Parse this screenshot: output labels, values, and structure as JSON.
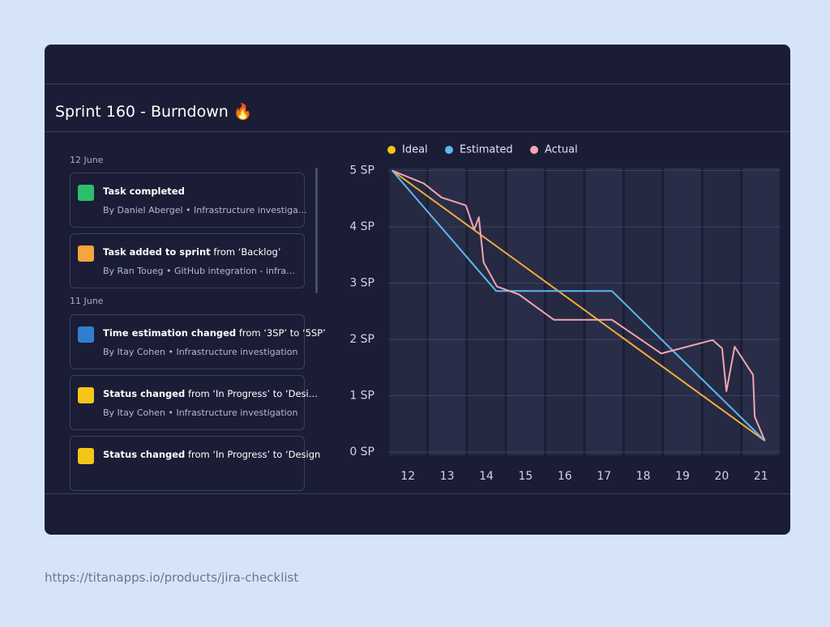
{
  "header": {
    "title": "Sprint 160 - Burndown 🔥"
  },
  "feed": {
    "groups": [
      {
        "date": "12 June",
        "items": [
          {
            "action": "Task completed",
            "detail": "",
            "meta": "By Daniel Abergel • Infrastructure investiga…"
          },
          {
            "action": "Task added to sprint",
            "detail": "from ‘Backlog’",
            "meta": "By Ran Toueg • GitHub integration - infra…"
          }
        ]
      },
      {
        "date": "11 June",
        "items": [
          {
            "action": "Time estimation changed",
            "detail": "from ‘3SP’ to ‘5SP’",
            "meta": "By Itay Cohen • Infrastructure investigation"
          },
          {
            "action": "Status changed",
            "detail": "from ‘In Progress’ to ‘Desi…",
            "meta": "By Itay Cohen • Infrastructure investigation"
          },
          {
            "action": "Status changed",
            "detail": "from ‘In Progress’ to ‘Design",
            "meta": ""
          }
        ]
      }
    ]
  },
  "chart_data": {
    "type": "line",
    "xlim": [
      11.5,
      21.5
    ],
    "xticks": [
      12,
      13,
      14,
      15,
      16,
      17,
      18,
      19,
      20,
      21
    ],
    "ylim": [
      0,
      5.05
    ],
    "yticks": [
      {
        "value": 0,
        "label": "0 SP"
      },
      {
        "value": 1,
        "label": "1 SP"
      },
      {
        "value": 2,
        "label": "2 SP"
      },
      {
        "value": 3,
        "label": "3 SP"
      },
      {
        "value": 4,
        "label": "4 SP"
      },
      {
        "value": 5,
        "label": "5 SP"
      }
    ],
    "grid": true,
    "series": [
      {
        "name": "Ideal",
        "color": "#f0ad3a",
        "x": [
          11.6,
          21.1
        ],
        "values": [
          5.0,
          0.2
        ]
      },
      {
        "name": "Estimated",
        "color": "#5bb8f0",
        "x": [
          11.6,
          14.25,
          17.2,
          21.1
        ],
        "values": [
          5.0,
          2.86,
          2.86,
          0.2
        ]
      },
      {
        "name": "Actual",
        "color": "#f0a6b0",
        "x": [
          11.6,
          12.41,
          12.86,
          13.48,
          13.69,
          13.81,
          13.93,
          14.27,
          14.83,
          15.72,
          17.2,
          18.46,
          19.77,
          20.01,
          20.12,
          20.33,
          20.8,
          20.84,
          21.1
        ],
        "values": [
          5.0,
          4.77,
          4.52,
          4.38,
          3.95,
          4.17,
          3.37,
          2.94,
          2.8,
          2.35,
          2.35,
          1.75,
          1.99,
          1.84,
          1.08,
          1.87,
          1.37,
          0.63,
          0.2
        ]
      }
    ]
  },
  "url": "https://titanapps.io/products/jira-checklist"
}
